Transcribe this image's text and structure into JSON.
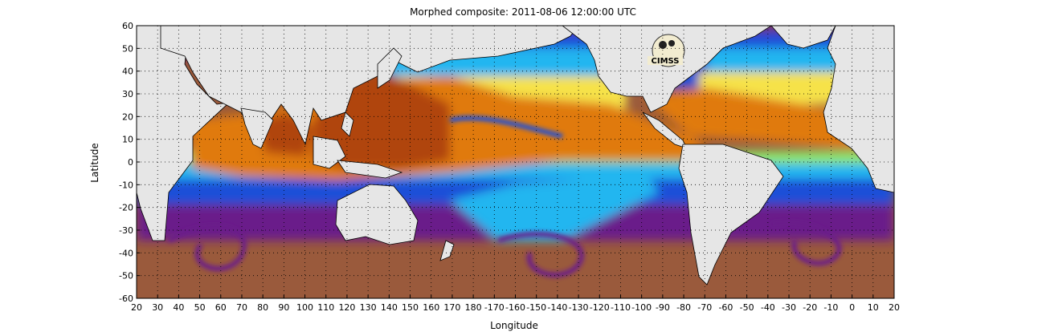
{
  "map": {
    "title": "Morphed composite: 2011-08-06 12:00:00 UTC",
    "xlabel": "Longitude",
    "ylabel": "Latitude",
    "lat_range": [
      -60,
      60
    ],
    "lon_start": 20,
    "lon_end": 380,
    "lat_ticks": [
      "60",
      "50",
      "40",
      "30",
      "20",
      "10",
      "0",
      "-10",
      "-20",
      "-30",
      "-40",
      "-50",
      "-60"
    ],
    "lon_ticks": [
      "20",
      "30",
      "40",
      "50",
      "60",
      "70",
      "80",
      "90",
      "100",
      "110",
      "120",
      "130",
      "140",
      "150",
      "160",
      "170",
      "180",
      "-170",
      "-160",
      "-150",
      "-140",
      "-130",
      "-120",
      "-110",
      "-100",
      "-90",
      "-80",
      "-70",
      "-60",
      "-50",
      "-40",
      "-30",
      "-20",
      "-10",
      "0",
      "10",
      "20"
    ],
    "grid": "dotted",
    "logo": "CIMSS",
    "colors": {
      "land": "#e6e6e6",
      "dry": "#9a5a3c",
      "purple": "#6a1f8a",
      "blue": "#1e4fd8",
      "cyan": "#24b6f0",
      "green": "#8ee86a",
      "yellow": "#f6e24a",
      "orange": "#e07a10",
      "deep": "#b0440a"
    }
  }
}
